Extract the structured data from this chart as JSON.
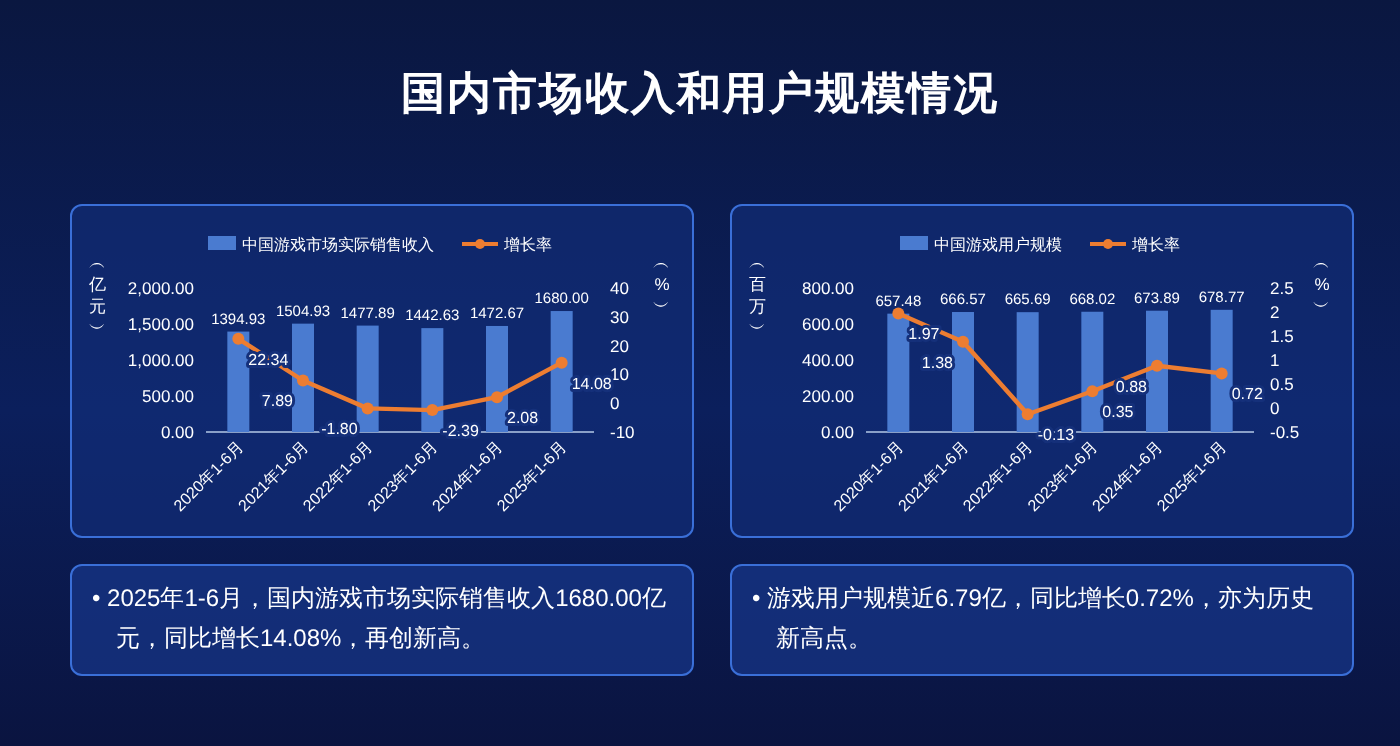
{
  "chart_data": [
    {
      "type": "bar",
      "title": "国内市场收入和用户规模情况",
      "categories": [
        "2020年1-6月",
        "2021年1-6月",
        "2022年1-6月",
        "2023年1-6月",
        "2024年1-6月",
        "2025年1-6月"
      ],
      "ylabel": "︵亿元︶",
      "y2label": "︵%︶",
      "ylim": [
        0,
        2000
      ],
      "yticks": [
        {
          "value": 0,
          "label": "0.00"
        },
        {
          "value": 500,
          "label": "500.00"
        },
        {
          "value": 1000,
          "label": "1,000.00"
        },
        {
          "value": 1500,
          "label": "1,500.00"
        },
        {
          "value": 2000,
          "label": "2,000.00"
        }
      ],
      "y2lim": [
        -10,
        40
      ],
      "y2ticks": [
        -10,
        0,
        10,
        20,
        30,
        40
      ],
      "series": [
        {
          "name": "中国游戏市场实际销售收入",
          "color": "#4a7bd0",
          "values": [
            1394.93,
            1504.93,
            1477.89,
            1442.63,
            1472.67,
            1680.0
          ],
          "value_labels": [
            "1394.93",
            "1504.93",
            "1477.89",
            "1442.63",
            "1472.67",
            "1680.00"
          ]
        },
        {
          "name": "增长率",
          "type": "line",
          "axis": "y2",
          "color": "#ed7d31",
          "values": [
            22.34,
            7.89,
            -1.8,
            -2.39,
            2.08,
            14.08
          ],
          "value_labels": [
            "22.34",
            "7.89",
            "-1.80",
            "-2.39",
            "2.08",
            "14.08"
          ]
        }
      ],
      "legend": "top",
      "marker": "circle",
      "grid": false,
      "annotations": [
        "• 2025年1-6月，国内游戏市场实际销售收入1680.00亿元，同比增长14.08%，再创新高。"
      ]
    },
    {
      "type": "bar",
      "categories": [
        "2020年1-6月",
        "2021年1-6月",
        "2022年1-6月",
        "2023年1-6月",
        "2024年1-6月",
        "2025年1-6月"
      ],
      "ylabel": "︵百万︶",
      "y2label": "︵%︶",
      "ylim": [
        0,
        800
      ],
      "yticks": [
        {
          "value": 0,
          "label": "0.00"
        },
        {
          "value": 200,
          "label": "200.00"
        },
        {
          "value": 400,
          "label": "400.00"
        },
        {
          "value": 600,
          "label": "600.00"
        },
        {
          "value": 800,
          "label": "800.00"
        }
      ],
      "y2lim": [
        -0.5,
        2.5
      ],
      "y2ticks": [
        -0.5,
        0,
        0.5,
        1,
        1.5,
        2,
        2.5
      ],
      "series": [
        {
          "name": "中国游戏用户规模",
          "color": "#4a7bd0",
          "values": [
            657.48,
            666.57,
            665.69,
            668.02,
            673.89,
            678.77
          ],
          "value_labels": [
            "657.48",
            "666.57",
            "665.69",
            "668.02",
            "673.89",
            "678.77"
          ]
        },
        {
          "name": "增长率",
          "type": "line",
          "axis": "y2",
          "color": "#ed7d31",
          "values": [
            1.97,
            1.38,
            -0.13,
            0.35,
            0.88,
            0.72
          ],
          "value_labels": [
            "1.97",
            "1.38",
            "-0.13",
            "0.35",
            "0.88",
            "0.72"
          ]
        }
      ],
      "legend": "top",
      "marker": "circle",
      "grid": false,
      "annotations": [
        "• 游戏用户规模近6.79亿，同比增长0.72%，亦为历史新高点。"
      ]
    }
  ]
}
